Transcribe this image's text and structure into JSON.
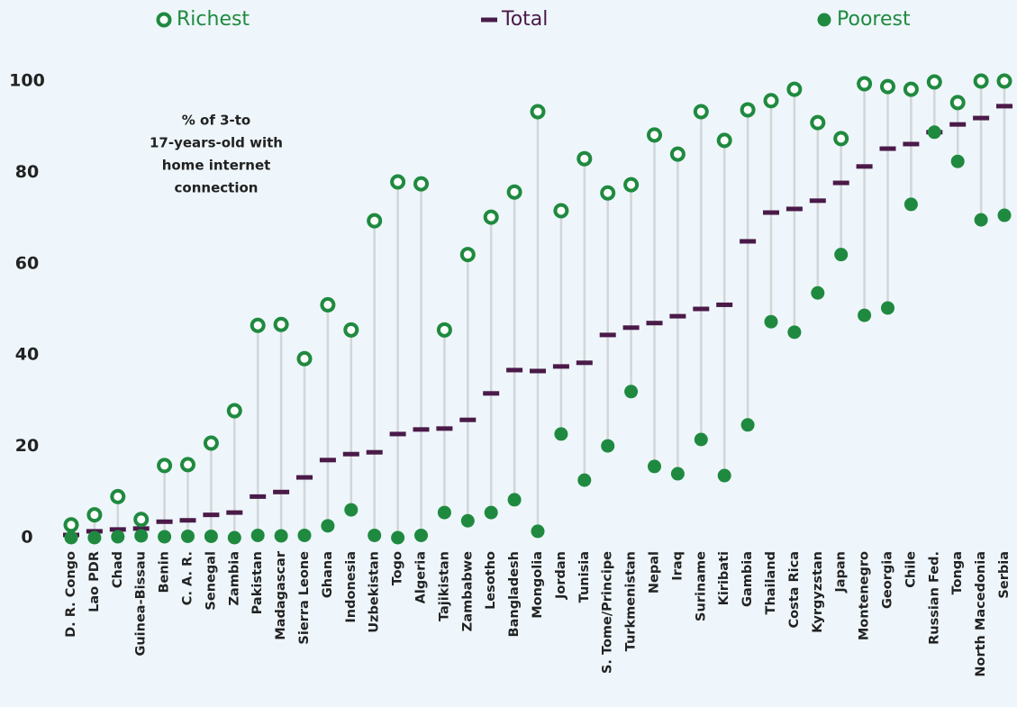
{
  "chart_data": {
    "type": "dot",
    "annotation": [
      "% of 3-to",
      "17-years-old with",
      "home internet",
      "connection"
    ],
    "categories": [
      "D. R. Congo",
      "Lao PDR",
      "Chad",
      "Guinea-Bissau",
      "Benin",
      "C. A. R.",
      "Senegal",
      "Zambia",
      "Pakistan",
      "Madagascar",
      "Sierra Leone",
      "Ghana",
      "Indonesia",
      "Uzbekistan",
      "Togo",
      "Algeria",
      "Tajikistan",
      "Zambabwe",
      "Lesotho",
      "Bangladesh",
      "Mongolia",
      "Jordan",
      "Tunisia",
      "S. Tome/Principe",
      "Turkmenistan",
      "Nepal",
      "Iraq",
      "Suriname",
      "Kiribati",
      "Gambia",
      "Thailand",
      "Costa Rica",
      "Kyrgyzstan",
      "Japan",
      "Montenegro",
      "Georgia",
      "Chile",
      "Russian Fed.",
      "Tonga",
      "North Macedonia",
      "Serbia"
    ],
    "series": [
      {
        "name": "Richest",
        "color": "#1f8a3f",
        "marker": "hollow",
        "values": [
          2.8,
          5,
          9,
          4,
          15.8,
          16,
          20.7,
          27.8,
          46.5,
          46.7,
          39.2,
          51,
          45.5,
          69.4,
          77.9,
          77.5,
          45.5,
          62,
          70.2,
          75.7,
          93.3,
          71.6,
          83,
          75.5,
          77.3,
          88.2,
          84,
          93.3,
          87,
          93.7,
          95.7,
          98.2,
          90.9,
          87.4,
          99.4,
          98.8,
          98.2,
          99.8,
          95.3,
          100,
          100
        ]
      },
      {
        "name": "Total",
        "color": "#4a1a48",
        "marker": "dash",
        "values": [
          0.6,
          1.4,
          1.8,
          2,
          3.5,
          3.8,
          5,
          5.5,
          9,
          10,
          13.2,
          17,
          18.3,
          18.7,
          22.7,
          23.7,
          23.9,
          25.8,
          31.6,
          36.7,
          36.5,
          37.5,
          38.3,
          44.4,
          46,
          47,
          48.5,
          50.1,
          51,
          64.9,
          71.2,
          72,
          73.8,
          77.7,
          81.3,
          85.2,
          86.2,
          88.8,
          90.5,
          91.9,
          94.5
        ]
      },
      {
        "name": "Poorest",
        "color": "#1f8a3f",
        "marker": "filled",
        "values": [
          0,
          0,
          0.2,
          0.4,
          0.2,
          0.3,
          0.3,
          0,
          0.5,
          0.4,
          0.5,
          2.6,
          6.1,
          0.5,
          0,
          0.5,
          5.5,
          3.7,
          5.5,
          8.3,
          1.4,
          22.7,
          12.6,
          20.1,
          32,
          15.6,
          14,
          21.5,
          13.6,
          24.7,
          47.3,
          45,
          53.6,
          62,
          48.7,
          50.3,
          73,
          88.8,
          82.4,
          69.6,
          70.6
        ]
      }
    ],
    "ylim": [
      0,
      100
    ],
    "yticks": [
      0,
      20,
      40,
      60,
      80,
      100
    ],
    "grid": false
  }
}
